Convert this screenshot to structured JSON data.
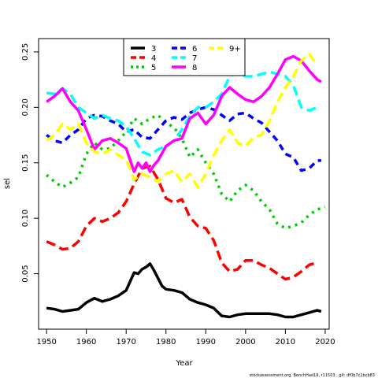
{
  "chart_data": {
    "type": "line",
    "xlabel": "Year",
    "ylabel": "sel",
    "xlim": [
      1948,
      2021
    ],
    "ylim": [
      0.0,
      0.262
    ],
    "x_ticks": [
      1950,
      1960,
      1970,
      1980,
      1990,
      2000,
      2010,
      2020
    ],
    "y_ticks": [
      0.05,
      0.1,
      0.15,
      0.2,
      0.25
    ],
    "y_tick_labels": [
      "0.05",
      "0.10",
      "0.15",
      "0.20",
      "0.25"
    ],
    "legend_position": "top-center",
    "series": [
      {
        "name": "3",
        "color": "#000000",
        "dash": "solid",
        "width": 3.5,
        "x": [
          1950,
          1952,
          1954,
          1956,
          1958,
          1960,
          1962,
          1964,
          1966,
          1968,
          1970,
          1971,
          1972,
          1973,
          1974,
          1975,
          1976,
          1977,
          1978,
          1979,
          1980,
          1982,
          1984,
          1986,
          1988,
          1990,
          1992,
          1994,
          1996,
          1998,
          2000,
          2002,
          2004,
          2006,
          2008,
          2010,
          2012,
          2014,
          2016,
          2018,
          2019
        ],
        "y": [
          0.019,
          0.018,
          0.016,
          0.017,
          0.018,
          0.024,
          0.028,
          0.025,
          0.027,
          0.03,
          0.035,
          0.043,
          0.051,
          0.05,
          0.054,
          0.056,
          0.059,
          0.053,
          0.046,
          0.039,
          0.036,
          0.035,
          0.033,
          0.027,
          0.024,
          0.022,
          0.019,
          0.012,
          0.011,
          0.013,
          0.014,
          0.014,
          0.014,
          0.014,
          0.013,
          0.011,
          0.011,
          0.013,
          0.015,
          0.017,
          0.016
        ]
      },
      {
        "name": "4",
        "color": "#ff0000",
        "dash": "long",
        "width": 3.5,
        "x": [
          1950,
          1952,
          1954,
          1956,
          1958,
          1960,
          1962,
          1964,
          1966,
          1968,
          1970,
          1972,
          1974,
          1976,
          1978,
          1980,
          1982,
          1984,
          1986,
          1988,
          1990,
          1992,
          1994,
          1996,
          1998,
          2000,
          2002,
          2004,
          2006,
          2008,
          2010,
          2012,
          2014,
          2016,
          2018
        ],
        "y": [
          0.079,
          0.076,
          0.072,
          0.073,
          0.079,
          0.093,
          0.1,
          0.097,
          0.1,
          0.105,
          0.115,
          0.131,
          0.145,
          0.147,
          0.135,
          0.118,
          0.114,
          0.117,
          0.101,
          0.093,
          0.091,
          0.08,
          0.06,
          0.052,
          0.054,
          0.062,
          0.062,
          0.058,
          0.055,
          0.05,
          0.045,
          0.047,
          0.052,
          0.058,
          0.06
        ]
      },
      {
        "name": "5",
        "color": "#00cc00",
        "dash": "dotted",
        "width": 3.5,
        "x": [
          1950,
          1952,
          1954,
          1956,
          1958,
          1960,
          1962,
          1964,
          1966,
          1968,
          1970,
          1972,
          1974,
          1976,
          1978,
          1980,
          1982,
          1984,
          1986,
          1988,
          1990,
          1992,
          1994,
          1996,
          1998,
          2000,
          2002,
          2004,
          2006,
          2008,
          2010,
          2012,
          2014,
          2016,
          2018,
          2020
        ],
        "y": [
          0.139,
          0.133,
          0.128,
          0.132,
          0.137,
          0.158,
          0.168,
          0.162,
          0.163,
          0.17,
          0.178,
          0.19,
          0.185,
          0.19,
          0.193,
          0.186,
          0.182,
          0.172,
          0.155,
          0.162,
          0.15,
          0.14,
          0.122,
          0.115,
          0.125,
          0.13,
          0.125,
          0.115,
          0.108,
          0.095,
          0.091,
          0.093,
          0.096,
          0.103,
          0.108,
          0.11
        ]
      },
      {
        "name": "6",
        "color": "#0000ff",
        "dash": "dashed",
        "width": 3.5,
        "x": [
          1950,
          1952,
          1954,
          1956,
          1958,
          1960,
          1962,
          1964,
          1966,
          1968,
          1970,
          1972,
          1974,
          1976,
          1978,
          1980,
          1982,
          1984,
          1986,
          1988,
          1990,
          1992,
          1994,
          1996,
          1998,
          2000,
          2002,
          2004,
          2006,
          2008,
          2010,
          2012,
          2014,
          2016,
          2018,
          2019
        ],
        "y": [
          0.175,
          0.17,
          0.168,
          0.175,
          0.18,
          0.19,
          0.193,
          0.192,
          0.188,
          0.185,
          0.178,
          0.18,
          0.173,
          0.172,
          0.18,
          0.188,
          0.191,
          0.189,
          0.195,
          0.198,
          0.2,
          0.198,
          0.193,
          0.188,
          0.194,
          0.195,
          0.19,
          0.186,
          0.178,
          0.17,
          0.158,
          0.155,
          0.143,
          0.145,
          0.152,
          0.152
        ]
      },
      {
        "name": "7",
        "color": "#00ffff",
        "dash": "long",
        "width": 3.5,
        "x": [
          1950,
          1952,
          1954,
          1956,
          1958,
          1960,
          1962,
          1964,
          1966,
          1968,
          1970,
          1972,
          1974,
          1976,
          1978,
          1980,
          1982,
          1984,
          1986,
          1988,
          1990,
          1992,
          1994,
          1996,
          1998,
          2000,
          2002,
          2004,
          2006,
          2008,
          2010,
          2012,
          2014,
          2016,
          2018
        ],
        "y": [
          0.213,
          0.212,
          0.217,
          0.212,
          0.2,
          0.195,
          0.19,
          0.193,
          0.19,
          0.188,
          0.183,
          0.172,
          0.16,
          0.157,
          0.162,
          0.165,
          0.17,
          0.18,
          0.192,
          0.2,
          0.2,
          0.205,
          0.212,
          0.228,
          0.232,
          0.228,
          0.228,
          0.23,
          0.232,
          0.23,
          0.228,
          0.22,
          0.2,
          0.197,
          0.2
        ]
      },
      {
        "name": "8",
        "color": "#ff00ff",
        "dash": "solid",
        "width": 3.5,
        "x": [
          1950,
          1952,
          1954,
          1956,
          1958,
          1960,
          1962,
          1964,
          1966,
          1968,
          1970,
          1972,
          1973,
          1974,
          1975,
          1976,
          1977,
          1978,
          1980,
          1982,
          1984,
          1986,
          1988,
          1990,
          1992,
          1994,
          1996,
          1998,
          2000,
          2002,
          2004,
          2006,
          2008,
          2010,
          2012,
          2014,
          2016,
          2018,
          2019
        ],
        "y": [
          0.205,
          0.21,
          0.217,
          0.205,
          0.197,
          0.18,
          0.162,
          0.17,
          0.172,
          0.168,
          0.163,
          0.142,
          0.15,
          0.145,
          0.15,
          0.142,
          0.148,
          0.152,
          0.165,
          0.17,
          0.172,
          0.19,
          0.195,
          0.185,
          0.193,
          0.21,
          0.218,
          0.212,
          0.207,
          0.205,
          0.21,
          0.218,
          0.23,
          0.243,
          0.246,
          0.242,
          0.233,
          0.225,
          0.223
        ]
      },
      {
        "name": "9+",
        "color": "#ffff00",
        "dash": "long",
        "width": 3.5,
        "x": [
          1950,
          1952,
          1954,
          1956,
          1958,
          1960,
          1962,
          1964,
          1966,
          1968,
          1970,
          1972,
          1974,
          1976,
          1978,
          1980,
          1982,
          1984,
          1986,
          1988,
          1990,
          1992,
          1994,
          1996,
          1998,
          2000,
          2002,
          2004,
          2006,
          2008,
          2010,
          2012,
          2014,
          2016,
          2018
        ],
        "y": [
          0.17,
          0.175,
          0.185,
          0.18,
          0.185,
          0.168,
          0.16,
          0.158,
          0.162,
          0.157,
          0.153,
          0.135,
          0.14,
          0.137,
          0.133,
          0.14,
          0.143,
          0.133,
          0.14,
          0.128,
          0.14,
          0.157,
          0.17,
          0.18,
          0.168,
          0.165,
          0.173,
          0.175,
          0.188,
          0.205,
          0.218,
          0.228,
          0.242,
          0.248,
          0.238
        ]
      }
    ]
  },
  "footer": "stockassessment.org, BenchHad19, r11503 , git: df0b7c1bcb83"
}
